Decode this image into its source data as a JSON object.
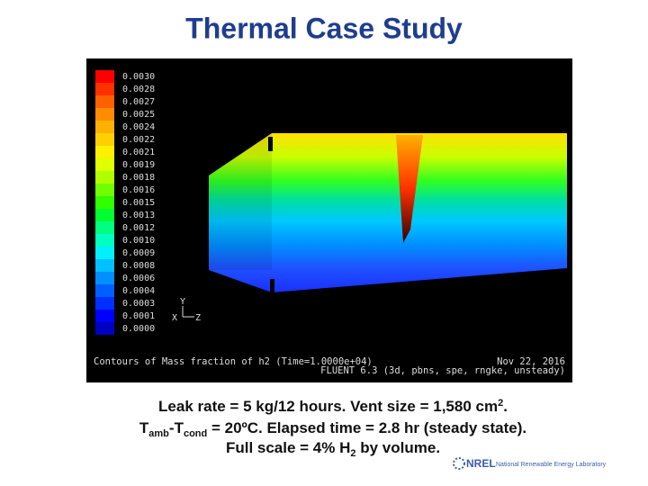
{
  "title": "Thermal Case Study",
  "figure": {
    "legend": {
      "labels": [
        "0.0030",
        "0.0028",
        "0.0027",
        "0.0025",
        "0.0024",
        "0.0022",
        "0.0021",
        "0.0019",
        "0.0018",
        "0.0016",
        "0.0015",
        "0.0013",
        "0.0012",
        "0.0010",
        "0.0009",
        "0.0008",
        "0.0006",
        "0.0004",
        "0.0003",
        "0.0001",
        "0.0000"
      ],
      "colors": [
        "#ff0000",
        "#ff3000",
        "#ff6000",
        "#ff8c00",
        "#ffb000",
        "#ffd000",
        "#fff000",
        "#e0ff00",
        "#b0ff00",
        "#70ff00",
        "#30ff00",
        "#00ff30",
        "#00ff80",
        "#00ffc0",
        "#00f0ff",
        "#00c0ff",
        "#0090ff",
        "#0060ff",
        "#0030ff",
        "#0000ff",
        "#0000c0"
      ]
    },
    "axes": {
      "y": "Y",
      "x": "X",
      "z": "Z"
    },
    "footer_left": "Contours of Mass fraction of h2  (Time=1.0000e+04)",
    "footer_date": "Nov 22, 2016",
    "footer_solver": "FLUENT 6.3 (3d, pbns, spe, rngke, unsteady)"
  },
  "caption": {
    "line1": {
      "text": "Leak rate = 5 kg/12 hours. Vent size = 1,580 cm",
      "sup": "2",
      "end": "."
    },
    "line2": {
      "t1": "T",
      "sub1": "amb",
      "t2": "-T",
      "sub2": "cond",
      "end": " = 20ºC.  Elapsed time = 2.8 hr (steady state)."
    },
    "line3": {
      "text": "Full scale = 4% H",
      "sub": "2",
      "end": " by volume."
    }
  },
  "logo": {
    "mark": "NREL",
    "name": "National Renewable Energy Laboratory"
  }
}
